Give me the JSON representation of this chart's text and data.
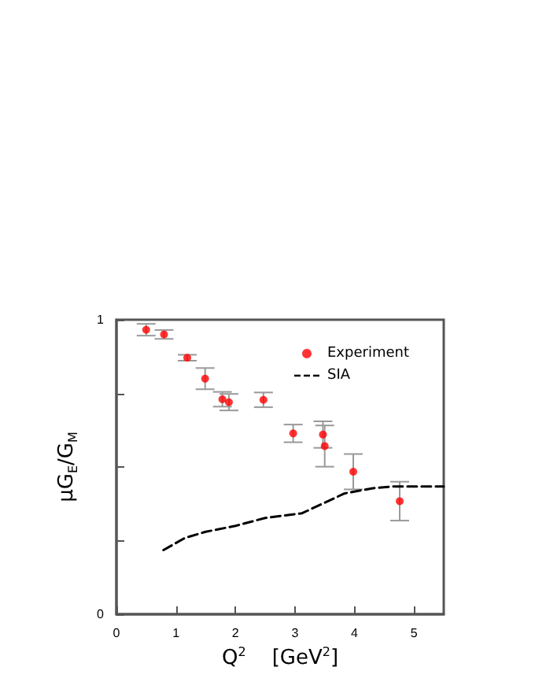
{
  "chart_data": {
    "type": "scatter",
    "xlabel": "Q$^{2}$    [GeV$^{2}$]",
    "ylabel": "μG$_{E}$/G$_{M}$",
    "xlim": [
      0,
      5.5
    ],
    "xticks": [
      0,
      1,
      2,
      3,
      4,
      5
    ],
    "ylim": [
      0,
      1
    ],
    "yticks": [
      0,
      {
        "value": 0.25,
        "label": null
      },
      {
        "value": 0.5,
        "label": null
      },
      {
        "value": 0.75,
        "label": null
      },
      1
    ],
    "grid": false,
    "legend": "top right",
    "series": [
      {
        "name": "Experiment",
        "color": "#ff0000",
        "marker": "circle",
        "x": [
          0.5,
          0.8,
          1.19,
          1.49,
          1.78,
          1.89,
          2.47,
          2.97,
          3.47,
          3.5,
          3.98,
          4.76
        ],
        "values": [
          0.966,
          0.95,
          0.871,
          0.8,
          0.73,
          0.72,
          0.728,
          0.614,
          0.61,
          0.571,
          0.484,
          0.384
        ],
        "errors": [
          0.02,
          0.015,
          0.01,
          0.036,
          0.025,
          0.028,
          0.025,
          0.03,
          0.045,
          0.07,
          0.06,
          0.066
        ]
      },
      {
        "name": "SIA",
        "type": "line",
        "color": "#000000",
        "marker": "none",
        "line_style": "dashed",
        "x": [
          0.79,
          1.15,
          1.5,
          2,
          2.5,
          3.12,
          3.83,
          4.31,
          4.66,
          5.5
        ],
        "values": [
          0.218,
          0.259,
          0.28,
          0.3,
          0.327,
          0.343,
          0.41,
          0.428,
          0.434,
          0.434
        ]
      }
    ]
  }
}
